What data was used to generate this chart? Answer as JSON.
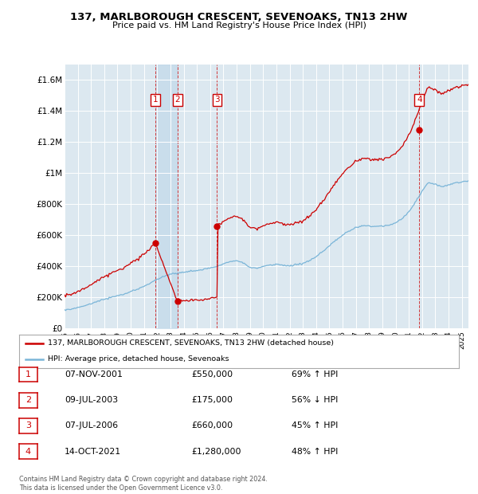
{
  "title": "137, MARLBOROUGH CRESCENT, SEVENOAKS, TN13 2HW",
  "subtitle": "Price paid vs. HM Land Registry's House Price Index (HPI)",
  "background_color": "#dce8f0",
  "hpi_color": "#7ab5d8",
  "price_color": "#cc0000",
  "shade_color": "#c8dff0",
  "ylim": [
    0,
    1700000
  ],
  "yticks": [
    0,
    200000,
    400000,
    600000,
    800000,
    1000000,
    1200000,
    1400000,
    1600000
  ],
  "ytick_labels": [
    "£0",
    "£200K",
    "£400K",
    "£600K",
    "£800K",
    "£1M",
    "£1.2M",
    "£1.4M",
    "£1.6M"
  ],
  "sale_dates": [
    2001.85,
    2003.52,
    2006.52,
    2021.79
  ],
  "sale_prices": [
    550000,
    175000,
    660000,
    1280000
  ],
  "sale_labels": [
    "1",
    "2",
    "3",
    "4"
  ],
  "legend_entries": [
    "137, MARLBOROUGH CRESCENT, SEVENOAKS, TN13 2HW (detached house)",
    "HPI: Average price, detached house, Sevenoaks"
  ],
  "table_data": [
    [
      "1",
      "07-NOV-2001",
      "£550,000",
      "69% ↑ HPI"
    ],
    [
      "2",
      "09-JUL-2003",
      "£175,000",
      "56% ↓ HPI"
    ],
    [
      "3",
      "07-JUL-2006",
      "£660,000",
      "45% ↑ HPI"
    ],
    [
      "4",
      "14-OCT-2021",
      "£1,280,000",
      "48% ↑ HPI"
    ]
  ],
  "footer": "Contains HM Land Registry data © Crown copyright and database right 2024.\nThis data is licensed under the Open Government Licence v3.0.",
  "xmin": 1995,
  "xmax": 2025.5
}
